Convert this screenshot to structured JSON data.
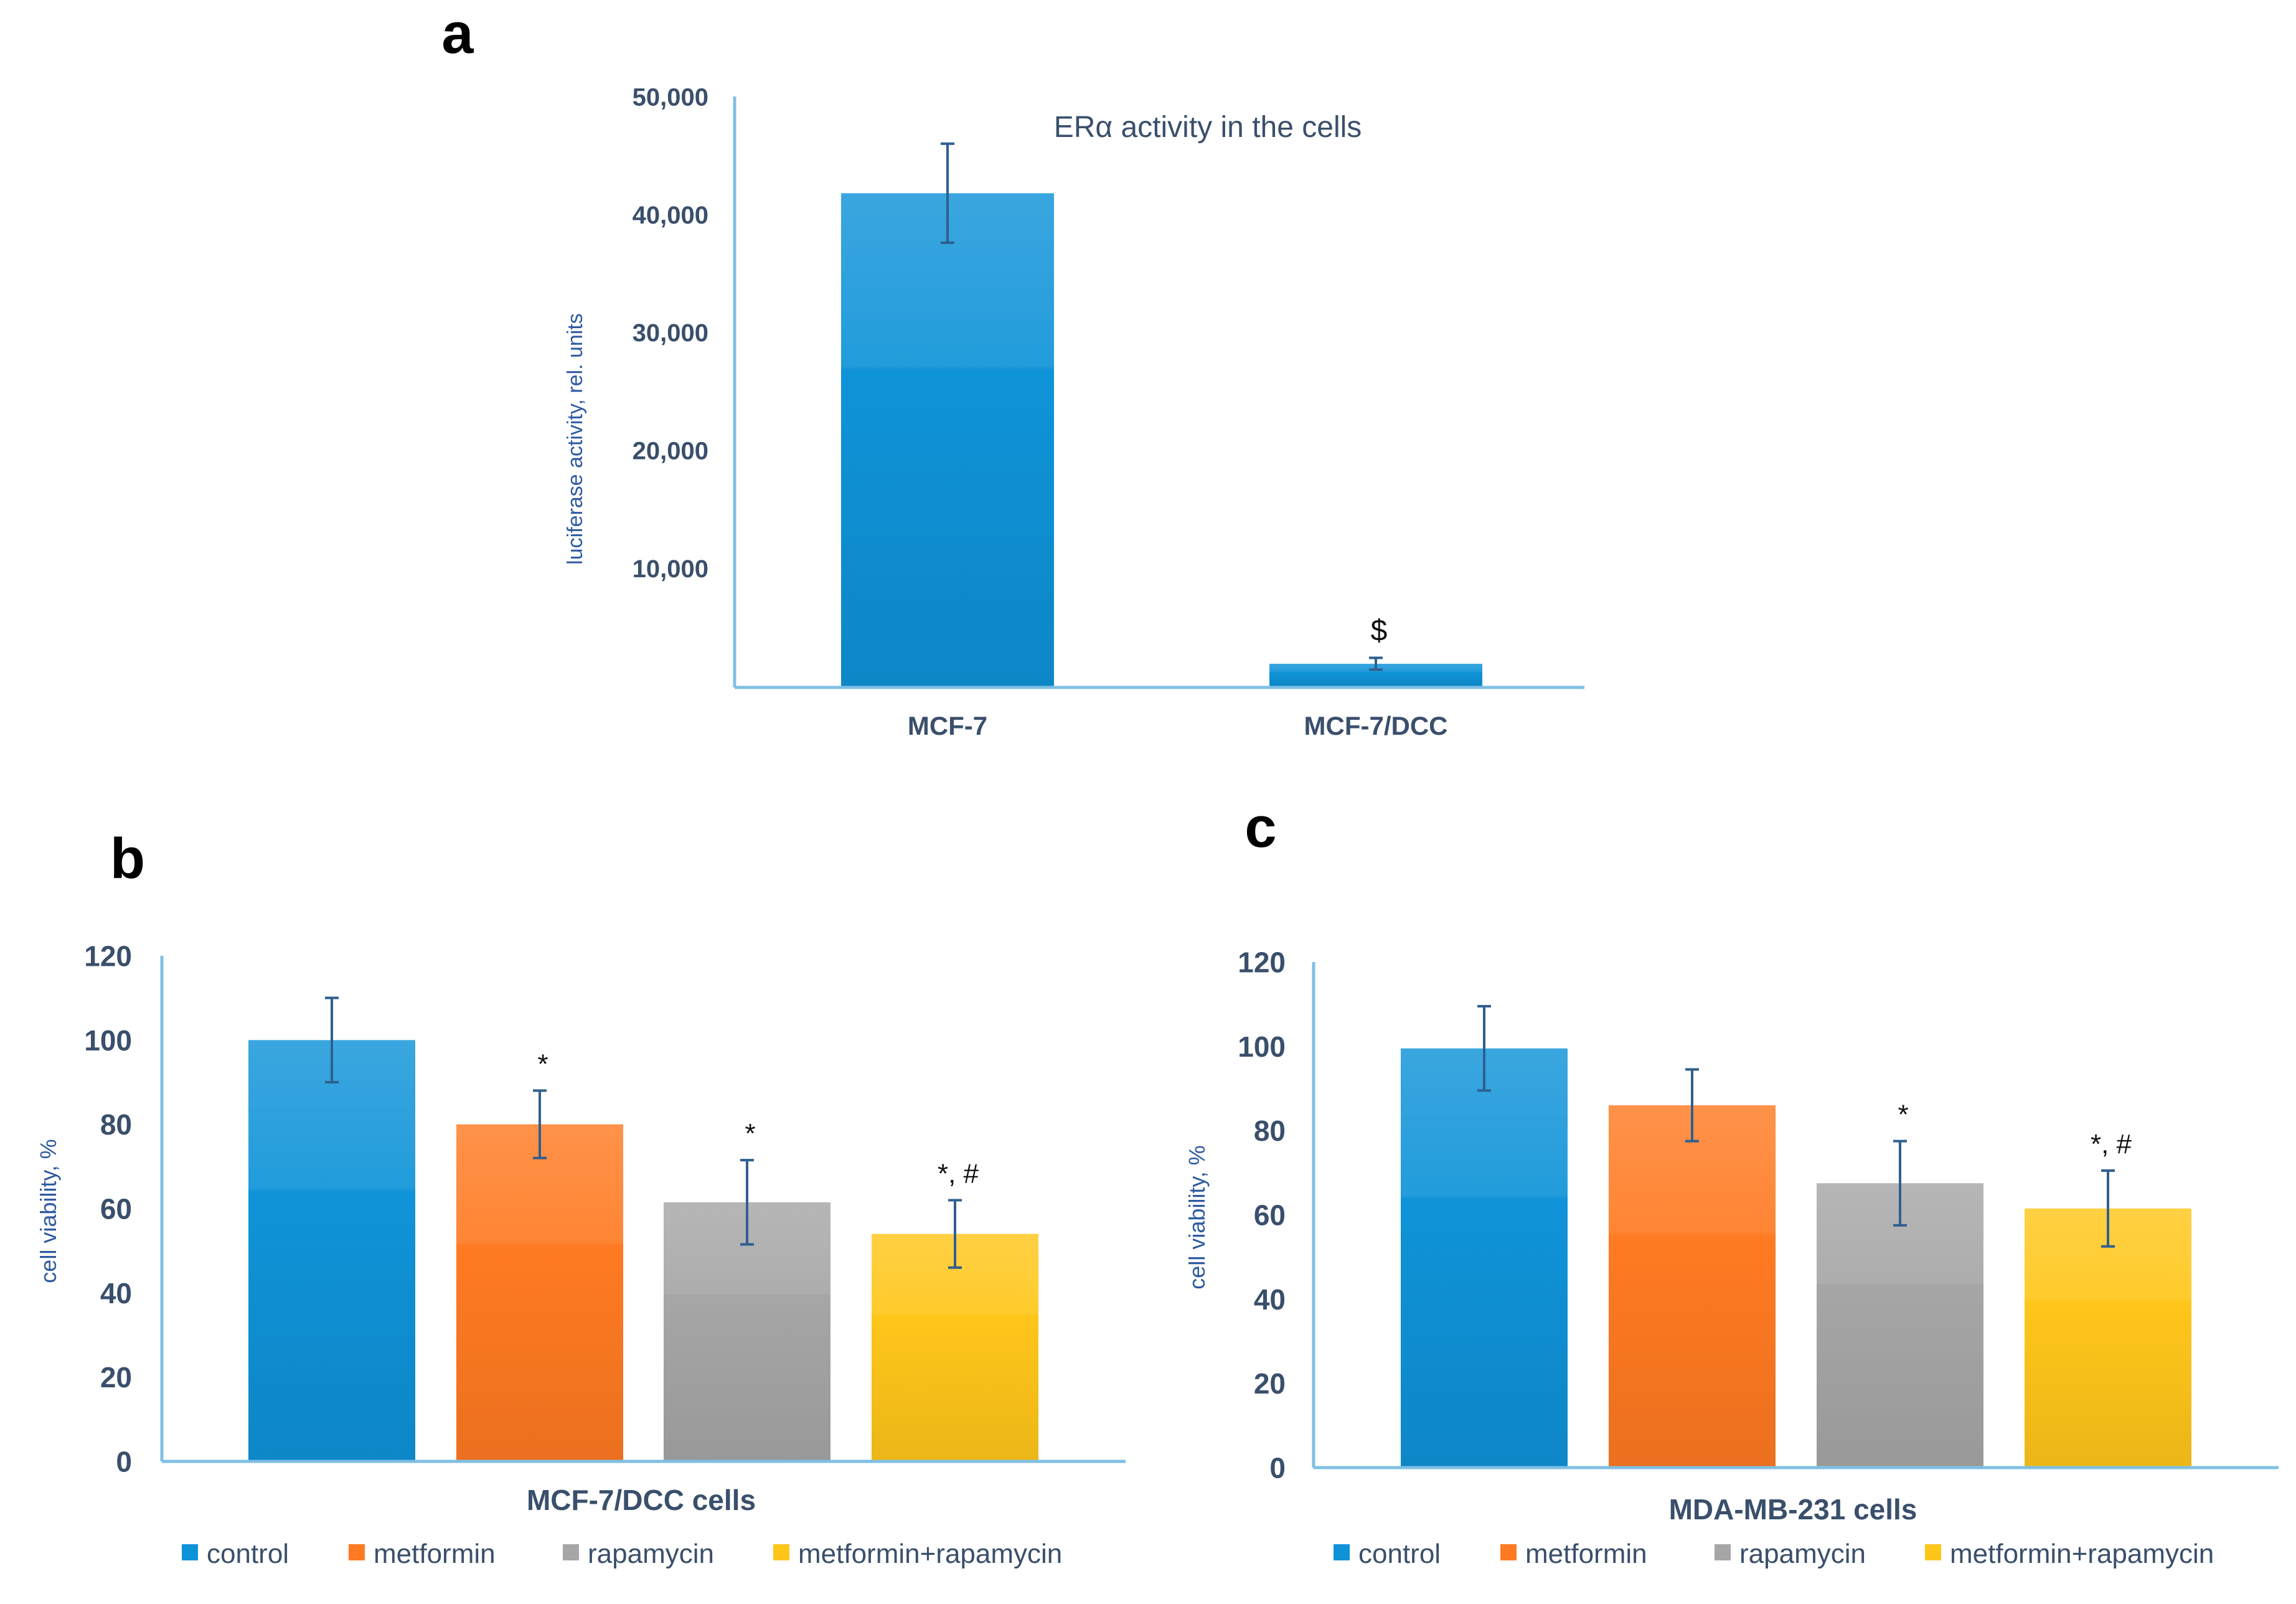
{
  "colors": {
    "axis": "#7fbfe4",
    "tick_text": "#3a4f6b",
    "ylabel_text": "#2e5aa0",
    "title_text": "#3a4f6b",
    "error_bar": "#2f5f8f",
    "control": "#0f93d8",
    "metformin": "#ff7a22",
    "rapamycin": "#a6a6a6",
    "metformin_rapamycin": "#ffc61a"
  },
  "panels": {
    "a": {
      "letter": "a"
    },
    "b": {
      "letter": "b"
    },
    "c": {
      "letter": "c"
    }
  },
  "legend": [
    "control",
    "metformin",
    "rapamycin",
    "metformin+rapamycin"
  ],
  "chart_data": [
    {
      "panel": "a",
      "type": "bar",
      "title": "ERα activity in the cells",
      "xlabel": "",
      "ylabel": "luciferase activity, rel. units",
      "categories": [
        "MCF-7",
        "MCF-7/DCC"
      ],
      "values": [
        41800,
        1900
      ],
      "errors": [
        4200,
        500
      ],
      "annotations": [
        "",
        "$"
      ],
      "ylim": [
        0,
        50000
      ],
      "yticks": [
        10000,
        20000,
        30000,
        40000,
        50000
      ],
      "ytick_labels": [
        "10,000",
        "20,000",
        "30,000",
        "40,000",
        "50,000"
      ],
      "series_colors": [
        "control",
        "control"
      ]
    },
    {
      "panel": "b",
      "type": "bar",
      "title": "",
      "xlabel": "MCF-7/DCC cells",
      "ylabel": "cell viability, %",
      "categories": [
        "control",
        "metformin",
        "rapamycin",
        "metformin+rapamycin"
      ],
      "values": [
        100,
        80,
        61.5,
        54
      ],
      "errors": [
        10,
        8,
        10,
        8
      ],
      "annotations": [
        "",
        "*",
        "*",
        "*, #"
      ],
      "ylim": [
        0,
        120
      ],
      "yticks": [
        0,
        20,
        40,
        60,
        80,
        100,
        120
      ],
      "ytick_labels": [
        "0",
        "20",
        "40",
        "60",
        "80",
        "100",
        "120"
      ],
      "legend": "bottom",
      "series_colors": [
        "control",
        "metformin",
        "rapamycin",
        "metformin_rapamycin"
      ]
    },
    {
      "panel": "c",
      "type": "bar",
      "title": "",
      "xlabel": "MDA-MB-231 cells",
      "ylabel": "cell viability, %",
      "categories": [
        "control",
        "metformin",
        "rapamycin",
        "metformin+rapamycin"
      ],
      "values": [
        99.5,
        86,
        67.5,
        61.5
      ],
      "errors": [
        10,
        8.5,
        10,
        9
      ],
      "annotations": [
        "",
        "",
        "*",
        "*, #"
      ],
      "ylim": [
        0,
        120
      ],
      "yticks": [
        0,
        20,
        40,
        60,
        80,
        100,
        120
      ],
      "ytick_labels": [
        "0",
        "20",
        "40",
        "60",
        "80",
        "100",
        "120"
      ],
      "legend": "bottom",
      "series_colors": [
        "control",
        "metformin",
        "rapamycin",
        "metformin_rapamycin"
      ]
    }
  ]
}
